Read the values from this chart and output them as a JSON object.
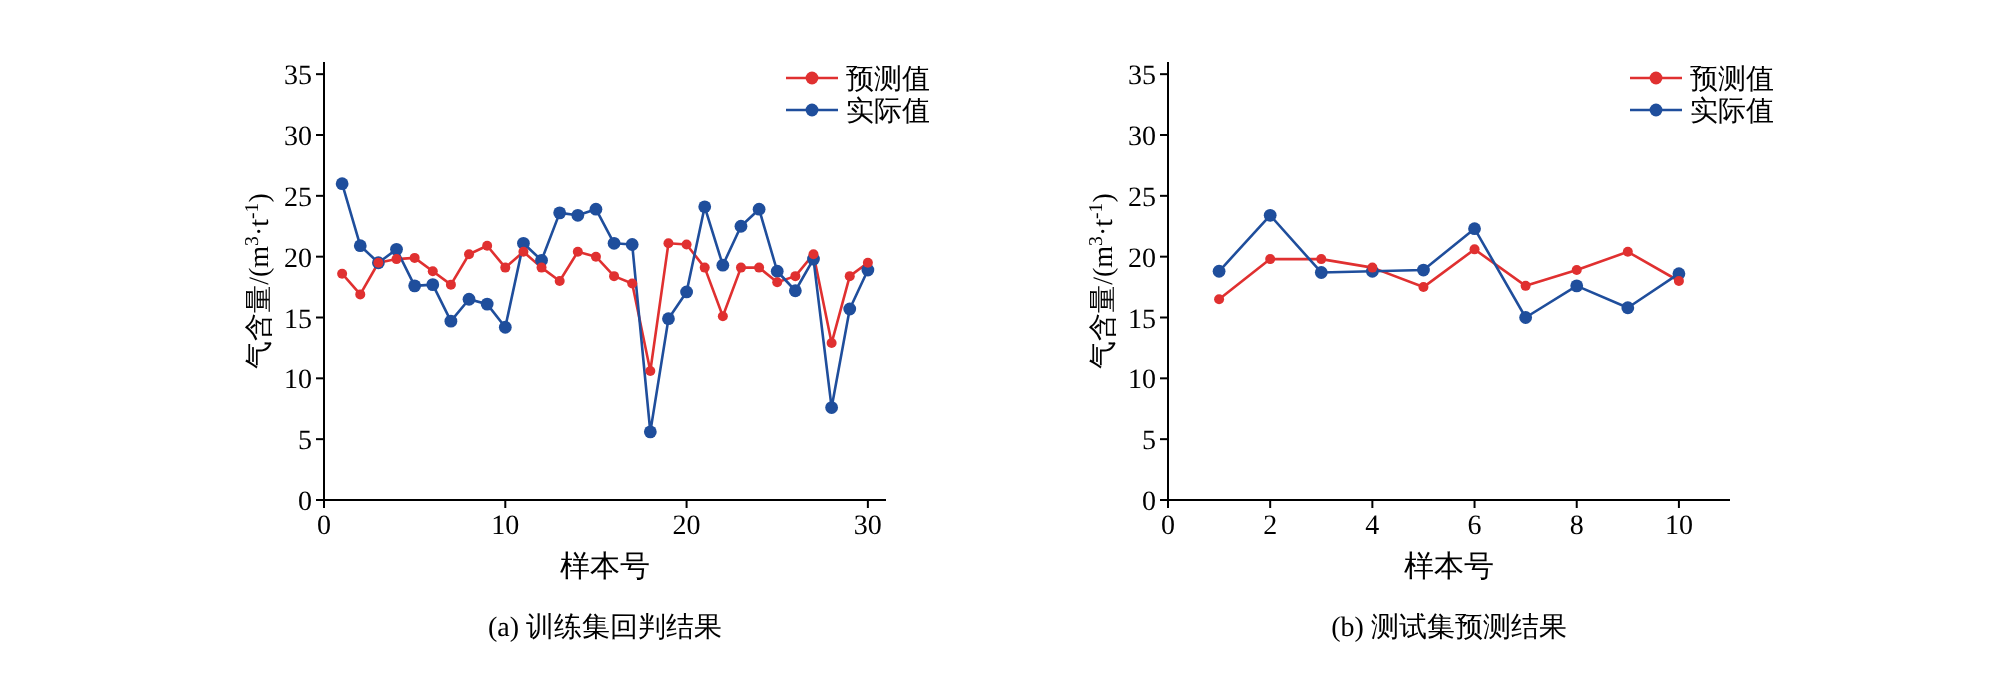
{
  "chart_data": [
    {
      "type": "line",
      "title": "(a) 训练集回判结果",
      "xlabel": "样本号",
      "ylabel": "气含量/(m$^{3}$·t$^{-1}$)",
      "x": [
        1,
        2,
        3,
        4,
        5,
        6,
        7,
        8,
        9,
        10,
        11,
        12,
        13,
        14,
        15,
        16,
        17,
        18,
        19,
        20,
        21,
        22,
        23,
        24,
        25,
        26,
        27,
        28,
        29,
        30
      ],
      "series": [
        {
          "name": "预测值",
          "color": "#e03030",
          "values": [
            18.6,
            16.9,
            19.5,
            19.8,
            19.9,
            18.8,
            17.7,
            20.2,
            20.9,
            19.1,
            20.4,
            19.1,
            18.0,
            20.4,
            20.0,
            18.4,
            17.8,
            10.6,
            21.1,
            21.0,
            19.1,
            15.1,
            19.1,
            19.1,
            17.9,
            18.4,
            20.2,
            12.9,
            18.4,
            19.5
          ]
        },
        {
          "name": "实际值",
          "color": "#1f4e9c",
          "values": [
            26.0,
            20.9,
            19.5,
            20.6,
            17.6,
            17.7,
            14.7,
            16.5,
            16.1,
            14.2,
            21.1,
            19.7,
            23.6,
            23.4,
            23.9,
            21.1,
            21.0,
            5.6,
            14.9,
            17.1,
            24.1,
            19.3,
            22.5,
            23.9,
            18.8,
            17.2,
            19.8,
            7.6,
            15.7,
            18.9
          ]
        }
      ],
      "xlim": [
        0,
        31
      ],
      "ylim": [
        0,
        36
      ],
      "xticks": [
        0,
        10,
        20,
        30
      ],
      "yticks": [
        0,
        5,
        10,
        15,
        20,
        25,
        30,
        35
      ],
      "legend": "top right",
      "marker": "circle",
      "line_style": "solid"
    },
    {
      "type": "line",
      "title": "(b) 测试集预测结果",
      "xlabel": "样本号",
      "ylabel": "气含量/(m$^{3}$·t$^{-1}$)",
      "x": [
        1,
        2,
        3,
        4,
        5,
        6,
        7,
        8,
        9,
        10
      ],
      "series": [
        {
          "name": "预测值",
          "color": "#e03030",
          "values": [
            16.5,
            19.8,
            19.8,
            19.1,
            17.5,
            20.6,
            17.6,
            18.9,
            20.4,
            18.0
          ]
        },
        {
          "name": "实际值",
          "color": "#1f4e9c",
          "values": [
            18.8,
            23.4,
            18.7,
            18.8,
            18.9,
            22.3,
            15.0,
            17.6,
            15.8,
            18.6
          ]
        }
      ],
      "xlim": [
        0,
        11
      ],
      "ylim": [
        0,
        36
      ],
      "xticks": [
        0,
        2,
        4,
        6,
        8,
        10
      ],
      "yticks": [
        0,
        5,
        10,
        15,
        20,
        25,
        30,
        35
      ],
      "legend": "top right",
      "marker": "circle",
      "line_style": "solid"
    }
  ]
}
